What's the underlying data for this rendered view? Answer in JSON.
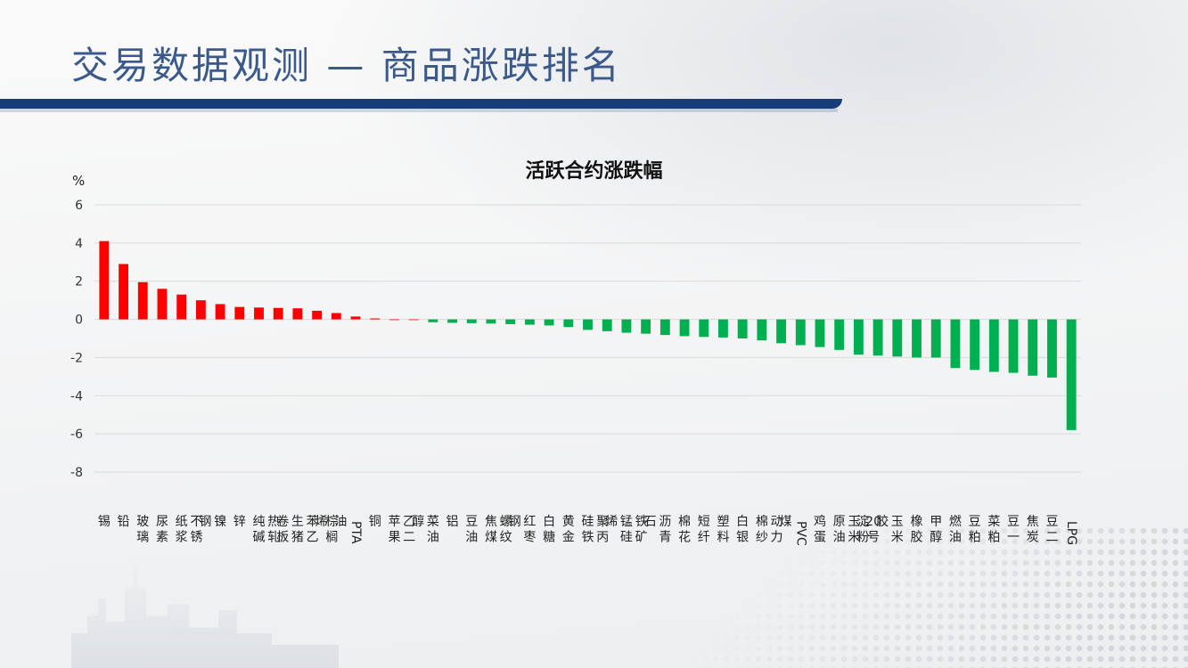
{
  "slide": {
    "title": "交易数据观测 — 商品涨跌排名",
    "colors": {
      "header_text": "#3b5a8a",
      "header_bar": "#173d78"
    }
  },
  "chart_data": {
    "type": "bar",
    "title": "活跃合约涨跌幅",
    "ylabel": "%",
    "ylim": [
      -8,
      6
    ],
    "yticks": [
      6,
      4,
      2,
      0,
      -2,
      -4,
      -6,
      -8
    ],
    "grid": true,
    "colors": {
      "positive": "#ff0000",
      "negative": "#00b050",
      "grid": "#d9d9d9"
    },
    "categories": [
      "锡",
      "铅",
      "玻璃",
      "尿素",
      "纸浆",
      "不锈钢",
      "镍",
      "锌",
      "纯碱",
      "热轧卷板",
      "生猪",
      "苯乙烯",
      "棕榈油",
      "PTA",
      "铜",
      "苹果",
      "乙二醇",
      "菜油",
      "铝",
      "豆油",
      "焦煤",
      "螺纹钢",
      "红枣",
      "白糖",
      "黄金",
      "硅铁",
      "聚丙烯",
      "锰硅",
      "铁矿石",
      "沥青",
      "棉花",
      "短纤",
      "塑料",
      "白银",
      "棉纱",
      "动力煤",
      "PVC",
      "鸡蛋",
      "原油",
      "玉米淀粉",
      "20号胶",
      "玉米",
      "橡胶",
      "甲醇",
      "燃油",
      "豆粕",
      "菜粕",
      "豆一",
      "焦炭",
      "豆二",
      "LPG"
    ],
    "values": [
      4.1,
      2.9,
      1.95,
      1.6,
      1.3,
      1.0,
      0.8,
      0.65,
      0.62,
      0.6,
      0.58,
      0.45,
      0.33,
      0.15,
      0.05,
      0.0,
      0.0,
      -0.15,
      -0.18,
      -0.2,
      -0.22,
      -0.25,
      -0.28,
      -0.32,
      -0.4,
      -0.55,
      -0.62,
      -0.7,
      -0.75,
      -0.82,
      -0.88,
      -0.92,
      -0.95,
      -1.0,
      -1.1,
      -1.25,
      -1.35,
      -1.45,
      -1.6,
      -1.85,
      -1.9,
      -1.95,
      -2.0,
      -2.0,
      -2.55,
      -2.65,
      -2.75,
      -2.8,
      -2.95,
      -3.05,
      -5.8
    ]
  }
}
